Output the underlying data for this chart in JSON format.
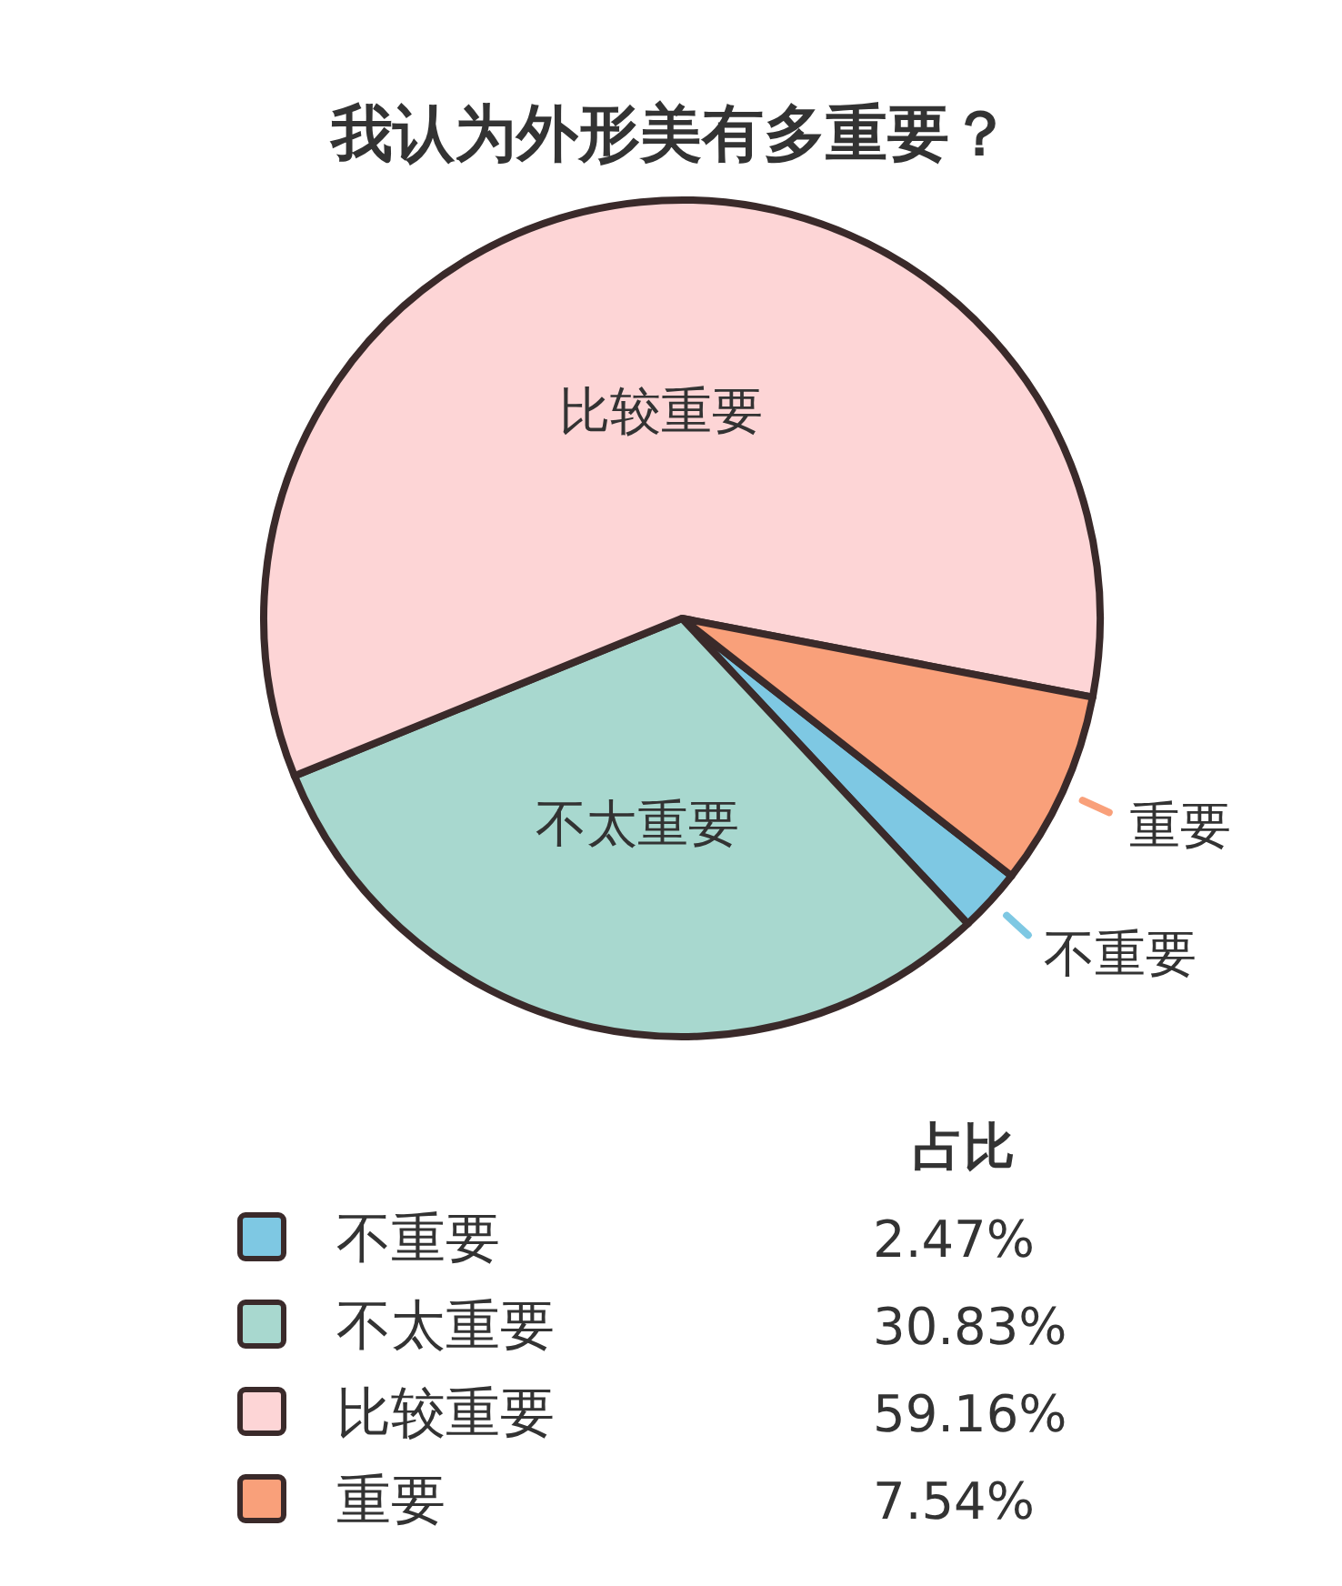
{
  "chart_data": {
    "type": "pie",
    "title": "我认为外形美有多重要？",
    "legend_title": "占比",
    "categories": [
      "不重要",
      "不太重要",
      "比较重要",
      "重要"
    ],
    "values": [
      2.47,
      30.83,
      59.16,
      7.54
    ],
    "colors": [
      "#7ec8e3",
      "#a8d8cf",
      "#fdd5d6",
      "#f9a07a"
    ],
    "value_labels": [
      "2.47%",
      "30.83%",
      "59.16%",
      "7.54%"
    ],
    "legend": "bottom"
  }
}
